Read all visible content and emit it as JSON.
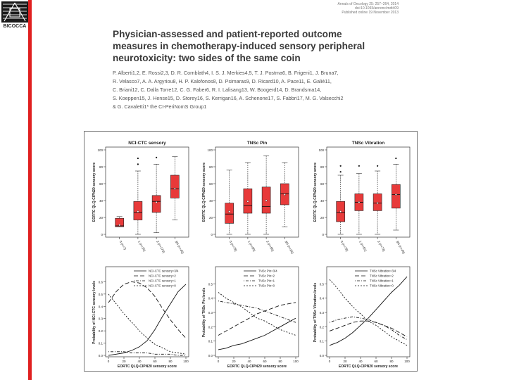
{
  "logo": {
    "text": "BICOCCA"
  },
  "journal": {
    "line1": "Annals of Oncology 25: 257–264, 2014",
    "line2": "doi:10.1093/annonc/mdt409",
    "line3": "Published online 19 November 2013"
  },
  "title": {
    "line1": "Physician-assessed and patient-reported outcome",
    "line2": "measures in chemotherapy-induced sensory peripheral",
    "line3": "neurotoxicity: two sides of the same coin"
  },
  "authors": [
    "P. Alberti1,2, E. Rossi2,3, D. R. Cornblath4, I. S. J. Merkies4,5, T. J. Postma6, B. Frigeni1, J. Bruna7,",
    "R. Velasco7, A. A. Argyriou8, H. P. Kalofonos8, D. Psimaras9, D. Ricard10, A. Pace11, E. Galiè11,",
    "C. Briani12, C. Dalla Torre12, C. G. Faber6, R. I. Lalisang13, W. Boogerd14, D. Brandsma14,",
    "S. Koeppen15, J. Hense15, D. Storey16, S. Kerrigan16, A. Schenone17, S. Fabbri17, M. G. Valsecchi2",
    "& G. Cavaletti1* the CI-PeriNomS Group1"
  ],
  "chart_data": [
    {
      "type": "boxplot",
      "title": "NCI-CTC sensory",
      "ylabel": "EORTC QLQ-CIPN20 sensory score",
      "ylim": [
        0,
        100
      ],
      "yticks": [
        0,
        20,
        40,
        60,
        80,
        100
      ],
      "categories": [
        "0 (n=7)",
        "1 (n=26)",
        "2 (n=173)",
        "3/4 (n=45)"
      ],
      "boxes": [
        {
          "whisker_low": 9,
          "q1": 9,
          "median": 10,
          "q3": 19,
          "whisker_high": 21,
          "mean": 11,
          "outliers": []
        },
        {
          "whisker_low": 0,
          "q1": 17,
          "median": 26,
          "q3": 39,
          "whisker_high": 75,
          "mean": 27,
          "outliers": [
            83,
            90
          ]
        },
        {
          "whisker_low": 2,
          "q1": 26,
          "median": 39,
          "q3": 46,
          "whisker_high": 83,
          "mean": 38,
          "outliers": [
            91
          ]
        },
        {
          "whisker_low": 17,
          "q1": 43,
          "median": 54,
          "q3": 70,
          "whisker_high": 92,
          "mean": 54,
          "outliers": []
        }
      ]
    },
    {
      "type": "boxplot",
      "title": "TNSc Pin",
      "ylabel": "EORTC QLQ-CIPN20 sensory score",
      "ylim": [
        0,
        100
      ],
      "yticks": [
        0,
        20,
        40,
        60,
        80,
        100
      ],
      "categories": [
        "0 (n=78)",
        "1 (n=90)",
        "2 (n=55)",
        "3/4 (n=26)"
      ],
      "boxes": [
        {
          "whisker_low": 0,
          "q1": 13,
          "median": 24,
          "q3": 37,
          "whisker_high": 76,
          "mean": 27,
          "outliers": []
        },
        {
          "whisker_low": 0,
          "q1": 25,
          "median": 34,
          "q3": 54,
          "whisker_high": 85,
          "mean": 39,
          "outliers": []
        },
        {
          "whisker_low": 0,
          "q1": 25,
          "median": 33,
          "q3": 56,
          "whisker_high": 93,
          "mean": 40,
          "outliers": []
        },
        {
          "whisker_low": 9,
          "q1": 35,
          "median": 48,
          "q3": 60,
          "whisker_high": 85,
          "mean": 47,
          "outliers": []
        }
      ]
    },
    {
      "type": "boxplot",
      "title": "TNSc Vibration",
      "ylabel": "EORTC QLQ-CIPN20 sensory score",
      "ylim": [
        0,
        100
      ],
      "yticks": [
        0,
        20,
        40,
        60,
        80,
        100
      ],
      "categories": [
        "0 (n=78)",
        "1 (n=81)",
        "2 (n=73)",
        "3/4 (n=49)"
      ],
      "boxes": [
        {
          "whisker_low": 0,
          "q1": 15,
          "median": 26,
          "q3": 39,
          "whisker_high": 70,
          "mean": 27,
          "outliers": [
            81,
            74
          ]
        },
        {
          "whisker_low": 0,
          "q1": 28,
          "median": 38,
          "q3": 48,
          "whisker_high": 72,
          "mean": 38,
          "outliers": [
            81
          ]
        },
        {
          "whisker_low": 0,
          "q1": 28,
          "median": 37,
          "q3": 48,
          "whisker_high": 75,
          "mean": 37,
          "outliers": [
            81
          ]
        },
        {
          "whisker_low": 5,
          "q1": 31,
          "median": 47,
          "q3": 59,
          "whisker_high": 83,
          "mean": 47,
          "outliers": [
            90
          ]
        }
      ]
    },
    {
      "type": "line",
      "ylabel": "Probability of NCI-CTC sensory levels",
      "xlabel": "EORTC QLQ-CIPN20 sensory score",
      "xlim": [
        0,
        100
      ],
      "ylim": [
        0,
        0.7
      ],
      "xticks": [
        0,
        20,
        40,
        60,
        80,
        100
      ],
      "yticks": [
        0.0,
        0.1,
        0.2,
        0.3,
        0.4,
        0.5,
        0.6
      ],
      "x": [
        0,
        10,
        20,
        30,
        40,
        50,
        60,
        70,
        80,
        90,
        100
      ],
      "series": [
        {
          "name": "NCI-CTC sensory=3/4",
          "dash": "solid",
          "values": [
            0.0,
            0.01,
            0.02,
            0.04,
            0.07,
            0.12,
            0.21,
            0.32,
            0.42,
            0.52,
            0.58
          ]
        },
        {
          "name": "NCI-CTC sensory=2",
          "dash": "long",
          "values": [
            0.43,
            0.52,
            0.58,
            0.6,
            0.59,
            0.55,
            0.48,
            0.38,
            0.29,
            0.21,
            0.14
          ]
        },
        {
          "name": "NCI-CTC sensory=1",
          "dash": "dotdash",
          "values": [
            0.03,
            0.03,
            0.03,
            0.02,
            0.02,
            0.02,
            0.01,
            0.01,
            0.01,
            0.0,
            0.0
          ]
        },
        {
          "name": "NCI-CTC sensory=0",
          "dash": "short",
          "values": [
            0.5,
            0.42,
            0.34,
            0.27,
            0.2,
            0.14,
            0.09,
            0.06,
            0.03,
            0.02,
            0.01
          ]
        }
      ]
    },
    {
      "type": "line",
      "ylabel": "Probability of TNSc Pin levels",
      "xlabel": "EORTC QLQ-CIPN20 sensory score",
      "xlim": [
        0,
        100
      ],
      "ylim": [
        0,
        0.6
      ],
      "xticks": [
        0,
        20,
        40,
        60,
        80,
        100
      ],
      "yticks": [
        0.0,
        0.1,
        0.2,
        0.3,
        0.4,
        0.5
      ],
      "x": [
        0,
        10,
        20,
        30,
        40,
        50,
        60,
        70,
        80,
        90,
        100
      ],
      "series": [
        {
          "name": "TNSc Pin=3/4",
          "dash": "solid",
          "values": [
            0.04,
            0.05,
            0.07,
            0.08,
            0.1,
            0.12,
            0.14,
            0.17,
            0.2,
            0.23,
            0.26
          ]
        },
        {
          "name": "TNSc Pin=2",
          "dash": "long",
          "values": [
            0.14,
            0.17,
            0.2,
            0.23,
            0.26,
            0.29,
            0.31,
            0.33,
            0.35,
            0.36,
            0.37
          ]
        },
        {
          "name": "TNSc Pin=1",
          "dash": "dotdash",
          "values": [
            0.38,
            0.37,
            0.36,
            0.35,
            0.34,
            0.33,
            0.31,
            0.29,
            0.27,
            0.25,
            0.23
          ]
        },
        {
          "name": "TNSc Pin=0",
          "dash": "short",
          "values": [
            0.44,
            0.4,
            0.37,
            0.34,
            0.3,
            0.26,
            0.24,
            0.21,
            0.18,
            0.16,
            0.14
          ]
        }
      ]
    },
    {
      "type": "line",
      "ylabel": "Probability of TNSc Vibration levels",
      "xlabel": "EORTC QLQ-CIPN20 sensory score",
      "xlim": [
        0,
        100
      ],
      "ylim": [
        0,
        0.6
      ],
      "xticks": [
        0,
        20,
        40,
        60,
        80,
        100
      ],
      "yticks": [
        0.0,
        0.1,
        0.2,
        0.3,
        0.4,
        0.5
      ],
      "x": [
        0,
        10,
        20,
        30,
        40,
        50,
        60,
        70,
        80,
        90,
        100
      ],
      "series": [
        {
          "name": "TNSc Vibration=3/4",
          "dash": "solid",
          "values": [
            0.07,
            0.09,
            0.12,
            0.16,
            0.21,
            0.26,
            0.32,
            0.38,
            0.44,
            0.49,
            0.55
          ]
        },
        {
          "name": "TNSc Vibration=2",
          "dash": "long",
          "values": [
            0.17,
            0.19,
            0.21,
            0.23,
            0.24,
            0.24,
            0.23,
            0.21,
            0.19,
            0.16,
            0.13
          ]
        },
        {
          "name": "TNSc Vibration=1",
          "dash": "dotdash",
          "values": [
            0.23,
            0.25,
            0.26,
            0.27,
            0.26,
            0.25,
            0.23,
            0.21,
            0.18,
            0.14,
            0.11
          ]
        },
        {
          "name": "TNSc Vibration=0",
          "dash": "short",
          "values": [
            0.53,
            0.47,
            0.4,
            0.34,
            0.29,
            0.24,
            0.21,
            0.17,
            0.13,
            0.1,
            0.07
          ]
        }
      ]
    }
  ]
}
